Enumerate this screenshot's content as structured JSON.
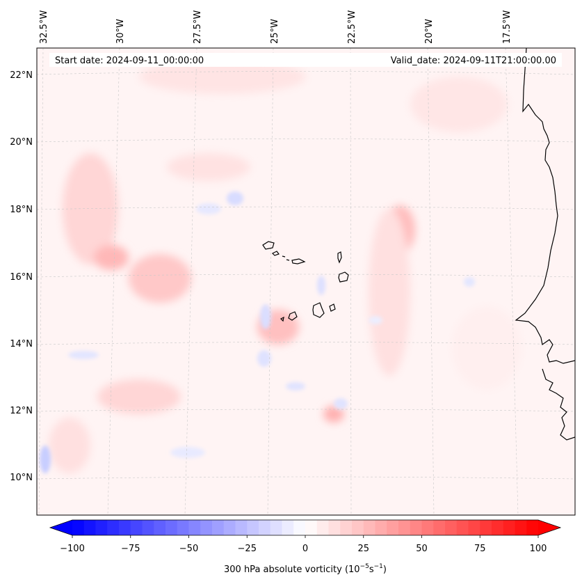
{
  "header": {
    "start_label": "Start date: 2024-09-11_00:00:00",
    "valid_label": "Valid_date: 2024-09-11T21:00:00.00"
  },
  "map": {
    "lon_labels": [
      "32.5°W",
      "30°W",
      "27.5°W",
      "25°W",
      "22.5°W",
      "20°W",
      "17.5°W"
    ],
    "lat_labels": [
      "22°N",
      "20°N",
      "18°N",
      "16°N",
      "14°N",
      "12°N",
      "10°N"
    ],
    "gridlines": true,
    "coastline_color": "#000000"
  },
  "colorbar": {
    "label_prefix": "300 hPa absolute vorticity (10",
    "label_exp1": "−5",
    "label_mid": "s",
    "label_exp2": "−1",
    "label_suffix": ")",
    "ticks": [
      "−100",
      "−75",
      "−50",
      "−25",
      "0",
      "25",
      "50",
      "75",
      "100"
    ],
    "min": -100,
    "max": 100,
    "colormap": "bwr",
    "low_color": "#0000ff",
    "mid_color": "#ffffff",
    "high_color": "#ff0000"
  }
}
